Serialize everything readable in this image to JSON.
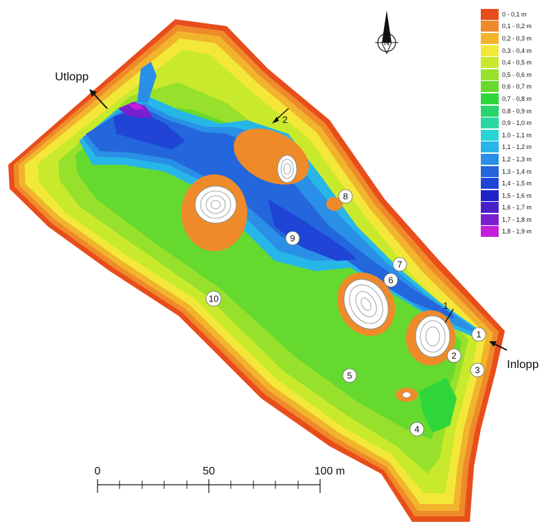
{
  "labels": {
    "outlet": "Utlopp",
    "inlet": "Inlopp",
    "section_1": "1",
    "section_2": "2"
  },
  "north_arrow": {
    "letter": "N",
    "icon": "north-arrow-icon"
  },
  "stations": [
    "1",
    "2",
    "3",
    "4",
    "5",
    "6",
    "7",
    "8",
    "9",
    "10"
  ],
  "scale_bar": {
    "label_0": "0",
    "label_50": "50",
    "label_100": "100 m"
  },
  "legend": [
    {
      "label": "0 - 0,1 m",
      "color": "#e84e1b"
    },
    {
      "label": "0,1 - 0,2 m",
      "color": "#ef8a2a"
    },
    {
      "label": "0,2 - 0,3 m",
      "color": "#f2b42c"
    },
    {
      "label": "0,3 - 0,4 m",
      "color": "#f3e83a"
    },
    {
      "label": "0,4 - 0,5 m",
      "color": "#c9ea2c"
    },
    {
      "label": "0,5 - 0,6 m",
      "color": "#97e02c"
    },
    {
      "label": "0,6 - 0,7 m",
      "color": "#66d92e"
    },
    {
      "label": "0,7 - 0,8 m",
      "color": "#2fd63a"
    },
    {
      "label": "0,8 - 0,9 m",
      "color": "#29d46c"
    },
    {
      "label": "0,9 - 1,0 m",
      "color": "#2ad8a3"
    },
    {
      "label": "1,0 - 1,1 m",
      "color": "#2ad6d4"
    },
    {
      "label": "1,1 - 1,2 m",
      "color": "#27b6e8"
    },
    {
      "label": "1,2 - 1,3 m",
      "color": "#2a8fe6"
    },
    {
      "label": "1,3 - 1,4 m",
      "color": "#2466dc"
    },
    {
      "label": "1,4 - 1,5 m",
      "color": "#1f44d6"
    },
    {
      "label": "1,5 - 1,6 m",
      "color": "#1f22c8"
    },
    {
      "label": "1,6 - 1,7 m",
      "color": "#4a20c8"
    },
    {
      "label": "1,7 - 1,8 m",
      "color": "#7a1fd0"
    },
    {
      "label": "1,8 - 1,9 m",
      "color": "#c21fdc"
    }
  ]
}
